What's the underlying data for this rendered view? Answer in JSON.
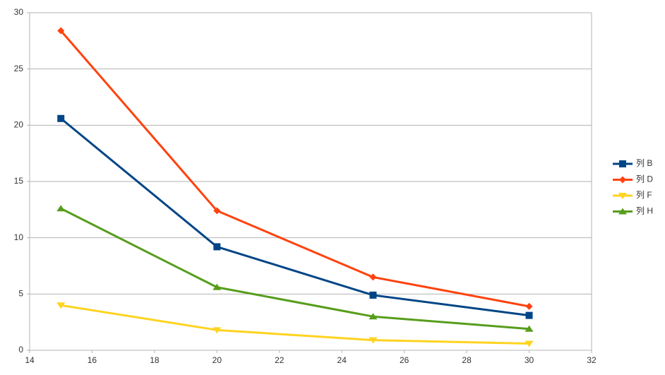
{
  "chart_data": {
    "type": "line",
    "x": [
      15,
      20,
      25,
      30
    ],
    "series": [
      {
        "name": "列 B",
        "color": "#004586",
        "marker": "square",
        "values": [
          20.6,
          9.2,
          4.9,
          3.1
        ]
      },
      {
        "name": "列 D",
        "color": "#ff420e",
        "marker": "diamond",
        "values": [
          28.4,
          12.4,
          6.5,
          3.9
        ]
      },
      {
        "name": "列 F",
        "color": "#ffd320",
        "marker": "triangle-down",
        "values": [
          4.0,
          1.8,
          0.9,
          0.6
        ]
      },
      {
        "name": "列 H",
        "color": "#579d1c",
        "marker": "triangle-up",
        "values": [
          12.6,
          5.6,
          3.0,
          1.9
        ]
      }
    ],
    "xlim": [
      14,
      32
    ],
    "xticks": [
      14,
      16,
      18,
      20,
      22,
      24,
      26,
      28,
      30,
      32
    ],
    "ylim": [
      0,
      30
    ],
    "yticks": [
      0,
      5,
      10,
      15,
      20,
      25,
      30
    ],
    "grid": true,
    "legend": "right"
  }
}
